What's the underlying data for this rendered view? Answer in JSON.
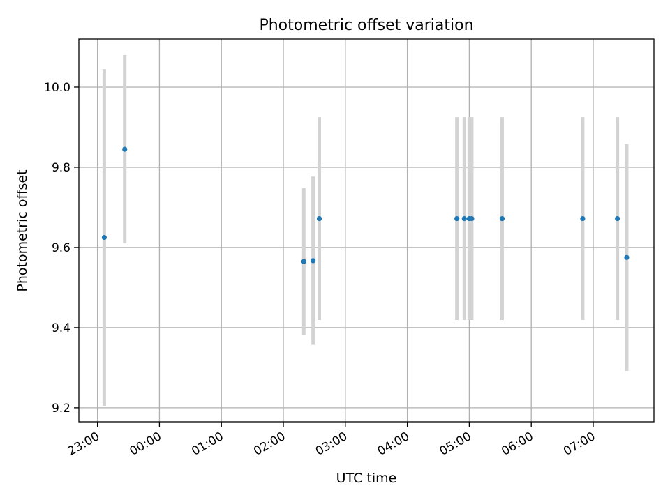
{
  "chart_data": {
    "type": "scatter",
    "title": "Photometric offset variation",
    "xlabel": "UTC time",
    "ylabel": "Photometric offset",
    "x_unit": "hours relative to 23:00 UTC",
    "xlim": [
      -0.3,
      8.98
    ],
    "ylim": [
      9.165,
      10.12
    ],
    "x_ticks": [
      {
        "value": 0,
        "label": "23:00"
      },
      {
        "value": 1,
        "label": "00:00"
      },
      {
        "value": 2,
        "label": "01:00"
      },
      {
        "value": 3,
        "label": "02:00"
      },
      {
        "value": 4,
        "label": "03:00"
      },
      {
        "value": 5,
        "label": "04:00"
      },
      {
        "value": 6,
        "label": "05:00"
      },
      {
        "value": 7,
        "label": "06:00"
      },
      {
        "value": 8,
        "label": "07:00"
      }
    ],
    "y_ticks": [
      {
        "value": 9.2,
        "label": "9.2"
      },
      {
        "value": 9.4,
        "label": "9.4"
      },
      {
        "value": 9.6,
        "label": "9.6"
      },
      {
        "value": 9.8,
        "label": "9.8"
      },
      {
        "value": 10.0,
        "label": "10.0"
      }
    ],
    "grid": true,
    "point_color": "#1f77b4",
    "errorbar_color": "#d3d3d3",
    "points": [
      {
        "x": 0.11,
        "y": 9.625,
        "err": 0.42
      },
      {
        "x": 0.44,
        "y": 9.845,
        "err": 0.235
      },
      {
        "x": 3.33,
        "y": 9.565,
        "err": 0.183
      },
      {
        "x": 3.48,
        "y": 9.567,
        "err": 0.21
      },
      {
        "x": 3.58,
        "y": 9.672,
        "err": 0.253
      },
      {
        "x": 5.8,
        "y": 9.672,
        "err": 0.253
      },
      {
        "x": 5.92,
        "y": 9.672,
        "err": 0.253
      },
      {
        "x": 6.0,
        "y": 9.672,
        "err": 0.253
      },
      {
        "x": 6.04,
        "y": 9.672,
        "err": 0.253
      },
      {
        "x": 6.53,
        "y": 9.672,
        "err": 0.253
      },
      {
        "x": 7.83,
        "y": 9.672,
        "err": 0.253
      },
      {
        "x": 8.39,
        "y": 9.672,
        "err": 0.253
      },
      {
        "x": 8.54,
        "y": 9.575,
        "err": 0.283
      }
    ]
  }
}
